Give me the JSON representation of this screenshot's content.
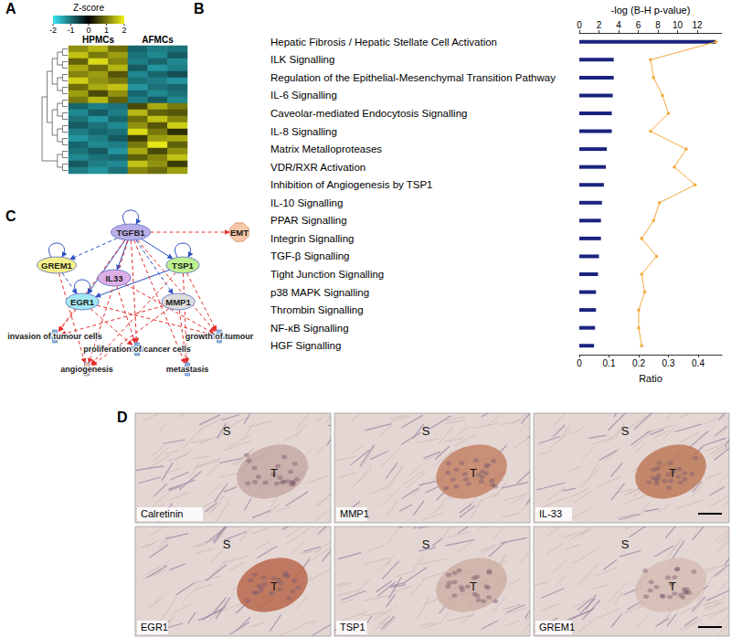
{
  "panel_labels": [
    "A",
    "B",
    "C",
    "D"
  ],
  "chart_data": [
    {
      "type": "heatmap",
      "column_groups": [
        {
          "label": "HPMCs",
          "columns": 3
        },
        {
          "label": "AFMCs",
          "columns": 3
        }
      ],
      "cells": [
        [
          1.2,
          1.5,
          0.9,
          -0.9,
          -1.1,
          -1.0
        ],
        [
          1.6,
          1.0,
          1.3,
          -1.0,
          -1.2,
          -0.8
        ],
        [
          0.8,
          1.8,
          1.1,
          -1.1,
          -0.9,
          -1.2
        ],
        [
          1.4,
          0.9,
          1.5,
          -0.8,
          -1.3,
          -1.1
        ],
        [
          1.1,
          1.3,
          0.7,
          -1.2,
          -0.9,
          -0.7
        ],
        [
          1.7,
          1.2,
          1.0,
          -1.0,
          -1.1,
          -1.3
        ],
        [
          0.9,
          1.4,
          1.6,
          -1.3,
          -1.0,
          -0.9
        ],
        [
          1.3,
          0.6,
          1.2,
          -0.9,
          -1.2,
          -1.0
        ],
        [
          1.0,
          1.5,
          0.8,
          -1.1,
          -0.8,
          -1.2
        ],
        [
          -0.9,
          -1.1,
          -1.0,
          0.6,
          1.4,
          1.0
        ],
        [
          -1.2,
          -0.8,
          -1.1,
          1.5,
          0.8,
          0.7
        ],
        [
          -1.0,
          -1.3,
          -0.9,
          0.9,
          1.6,
          1.1
        ],
        [
          -0.8,
          -1.0,
          -1.2,
          1.2,
          0.7,
          1.7
        ],
        [
          -1.1,
          -0.9,
          -1.0,
          1.8,
          1.0,
          0.4
        ],
        [
          -1.3,
          -1.1,
          -0.8,
          0.5,
          1.3,
          1.4
        ],
        [
          -0.9,
          -1.2,
          -1.1,
          1.0,
          1.9,
          0.8
        ],
        [
          -1.0,
          -0.8,
          -1.3,
          1.4,
          0.6,
          1.2
        ],
        [
          -1.2,
          -1.0,
          -0.9,
          0.8,
          1.1,
          1.6
        ],
        [
          -0.8,
          -1.1,
          -1.2,
          1.6,
          1.2,
          0.5
        ],
        [
          -1.1,
          -1.3,
          -1.0,
          1.1,
          0.9,
          1.3
        ]
      ],
      "color_bar": {
        "title": "Z-score",
        "range": [
          -2,
          2
        ],
        "ticks": [
          -2,
          -1,
          0,
          1,
          2
        ]
      },
      "colors": [
        "#36e3f2",
        "#000000",
        "#f2f21a"
      ],
      "tick_labels": false
    },
    {
      "type": "bar",
      "orientation": "horizontal",
      "xlabel": "-log (B-H p-value)",
      "x2label": "Ratio",
      "categories": [
        "Hepatic Fibrosis / Hepatic Stellate Cell Activation",
        "ILK Signalling",
        "Regulation of the Epithelial-Mesenchymal Transition Pathway",
        "IL-6 Signalling",
        "Caveolar-mediated Endocytosis Signalling",
        "IL-8 Signalling",
        "Matrix Metalloproteases",
        "VDR/RXR Activation",
        "Inhibition of Angiogenesis by TSP1",
        "IL-10 Signalling",
        "PPAR Signalling",
        "Integrin Signalling",
        "TGF-β Signalling",
        "Tight Junction Signalling",
        "p38 MAPK Signalling",
        "Thrombin Signalling",
        "NF-κB Signalling",
        "HGF Signalling"
      ],
      "series": [
        {
          "type": "bar",
          "color": "#1a237e",
          "values": [
            13.9,
            3.5,
            3.5,
            3.4,
            3.3,
            3.3,
            2.8,
            2.7,
            2.5,
            2.3,
            2.2,
            2.2,
            2.0,
            1.9,
            1.7,
            1.7,
            1.6,
            1.5
          ]
        },
        {
          "type": "line",
          "axis": "x2",
          "color": "#f4a93b",
          "marker": "circle",
          "values": [
            0.46,
            0.24,
            0.25,
            0.28,
            0.3,
            0.24,
            0.36,
            0.32,
            0.39,
            0.27,
            0.25,
            0.21,
            0.26,
            0.21,
            0.22,
            0.2,
            0.2,
            0.21
          ]
        }
      ],
      "xlim": [
        0,
        14.5
      ],
      "xticks": [
        0,
        2,
        4,
        6,
        8,
        10,
        12
      ],
      "x2lim": [
        0,
        0.48
      ],
      "x2ticks": [
        0,
        0.1,
        0.2,
        0.3,
        0.4
      ],
      "grid": false
    }
  ],
  "network": {
    "nodes": [
      {
        "label": "TGFB1",
        "color": "#b9aee8",
        "marker": "circle"
      },
      {
        "label": "EMT",
        "color": "#f7c8a8",
        "marker": "octagon"
      },
      {
        "label": "GREM1",
        "color": "#f5f08a",
        "marker": "circle"
      },
      {
        "label": "IL33",
        "color": "#dcaee6",
        "marker": "circle"
      },
      {
        "label": "TSP1",
        "color": "#bdf08e",
        "marker": "circle"
      },
      {
        "label": "EGR1",
        "color": "#a3e8f2",
        "marker": "circle"
      },
      {
        "label": "MMP1",
        "color": "#dcdcdc",
        "marker": "circle"
      },
      {
        "label": "invasion of tumour cells",
        "color": "#8fb4e0",
        "marker": "cross"
      },
      {
        "label": "proliferation of cancer cells",
        "color": "#8fb4e0",
        "marker": "cross"
      },
      {
        "label": "growth of tumour",
        "color": "#8fb4e0",
        "marker": "cross"
      },
      {
        "label": "angiogenesis",
        "color": "#f2c2a8",
        "marker": "cross"
      },
      {
        "label": "metastasis",
        "color": "#8fb4e0",
        "marker": "cross"
      }
    ],
    "edges": [
      {
        "from": 0,
        "to": 0,
        "color": "#2b4fc4",
        "line_style": "solid"
      },
      {
        "from": 2,
        "to": 2,
        "color": "#2b4fc4",
        "line_style": "solid"
      },
      {
        "from": 4,
        "to": 4,
        "color": "#2b4fc4",
        "line_style": "solid"
      },
      {
        "from": 5,
        "to": 5,
        "color": "#2b4fc4",
        "line_style": "solid"
      },
      {
        "from": 0,
        "to": 3,
        "color": "#2b4fc4",
        "line_style": "solid"
      },
      {
        "from": 0,
        "to": 4,
        "color": "#2b4fc4",
        "line_style": "solid"
      },
      {
        "from": 0,
        "to": 5,
        "color": "#2b4fc4",
        "line_style": "solid"
      },
      {
        "from": 4,
        "to": 5,
        "color": "#2b4fc4",
        "line_style": "solid"
      },
      {
        "from": 0,
        "to": 2,
        "color": "#2b4fc4",
        "line_style": "dashed"
      },
      {
        "from": 2,
        "to": 5,
        "color": "#2b4fc4",
        "line_style": "dashed"
      },
      {
        "from": 0,
        "to": 6,
        "color": "#2b4fc4",
        "line_style": "dashed"
      },
      {
        "from": 0,
        "to": 1,
        "color": "#e53030",
        "line_style": "dashed"
      },
      {
        "from": 0,
        "to": 7,
        "color": "#e53030",
        "line_style": "dashed"
      },
      {
        "from": 0,
        "to": 8,
        "color": "#e53030",
        "line_style": "dashed"
      },
      {
        "from": 0,
        "to": 9,
        "color": "#e53030",
        "line_style": "dashed"
      },
      {
        "from": 0,
        "to": 10,
        "color": "#e53030",
        "line_style": "dashed"
      },
      {
        "from": 0,
        "to": 11,
        "color": "#e53030",
        "line_style": "dashed"
      },
      {
        "from": 2,
        "to": 10,
        "color": "#e53030",
        "line_style": "dashed"
      },
      {
        "from": 5,
        "to": 7,
        "color": "#e53030",
        "line_style": "dashed"
      },
      {
        "from": 5,
        "to": 8,
        "color": "#e53030",
        "line_style": "dashed"
      },
      {
        "from": 5,
        "to": 9,
        "color": "#e53030",
        "line_style": "dashed"
      },
      {
        "from": 3,
        "to": 8,
        "color": "#e53030",
        "line_style": "dashed"
      },
      {
        "from": 3,
        "to": 9,
        "color": "#e53030",
        "line_style": "dashed"
      },
      {
        "from": 4,
        "to": 10,
        "color": "#e53030",
        "line_style": "dashed"
      },
      {
        "from": 4,
        "to": 9,
        "color": "#e53030",
        "line_style": "dashed"
      },
      {
        "from": 4,
        "to": 11,
        "color": "#e53030",
        "line_style": "dashed"
      },
      {
        "from": 6,
        "to": 7,
        "color": "#e53030",
        "line_style": "dashed"
      },
      {
        "from": 6,
        "to": 11,
        "color": "#e53030",
        "line_style": "dashed"
      },
      {
        "from": 6,
        "to": 10,
        "color": "#e53030",
        "line_style": "dashed"
      }
    ]
  },
  "micrographs": [
    {
      "label": "Calretinin",
      "stroma": "S",
      "tumour": "T",
      "color": "#c7aaa4",
      "scale_bar": false
    },
    {
      "label": "MMP1",
      "stroma": "S",
      "tumour": "T",
      "color": "#c48466",
      "scale_bar": false
    },
    {
      "label": "IL-33",
      "stroma": "S",
      "tumour": "T",
      "color": "#bd7a58",
      "scale_bar": true
    },
    {
      "label": "EGR1",
      "stroma": "S",
      "tumour": "T",
      "color": "#b9694b",
      "scale_bar": false
    },
    {
      "label": "TSP1",
      "stroma": "S",
      "tumour": "T",
      "color": "#cdb0a5",
      "scale_bar": false
    },
    {
      "label": "GREM1",
      "stroma": "S",
      "tumour": "T",
      "color": "#d5bdb3",
      "scale_bar": true
    }
  ]
}
